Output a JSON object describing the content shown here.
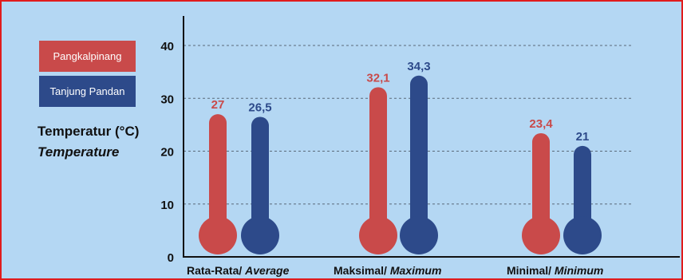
{
  "colors": {
    "background": "#b4d7f3",
    "border": "#e11c1c",
    "pangkalpinang": "#c94a4a",
    "tanjung_pandan": "#2d4a8a"
  },
  "legend": {
    "items": [
      {
        "label": "Pangkalpinang",
        "color": "#c94a4a"
      },
      {
        "label": "Tanjung Pandan",
        "color": "#2d4a8a"
      }
    ]
  },
  "ylabel": {
    "id": "Temperatur (°C)",
    "en": "Temperature"
  },
  "chart_data": {
    "type": "bar",
    "ylim": [
      0,
      40
    ],
    "yticks": [
      0,
      10,
      20,
      30,
      40
    ],
    "grid": true,
    "legend_position": "top-left",
    "categories": [
      {
        "id": "Rata-Rata/",
        "en": "Average"
      },
      {
        "id": "Maksimal/",
        "en": "Maximum"
      },
      {
        "id": "Minimal/",
        "en": "Minimum"
      }
    ],
    "series": [
      {
        "name": "Pangkalpinang",
        "values": [
          27,
          32.1,
          23.4
        ],
        "labels": [
          "27",
          "32,1",
          "23,4"
        ]
      },
      {
        "name": "Tanjung Pandan",
        "values": [
          26.5,
          34.3,
          21
        ],
        "labels": [
          "26,5",
          "34,3",
          "21"
        ]
      }
    ]
  }
}
